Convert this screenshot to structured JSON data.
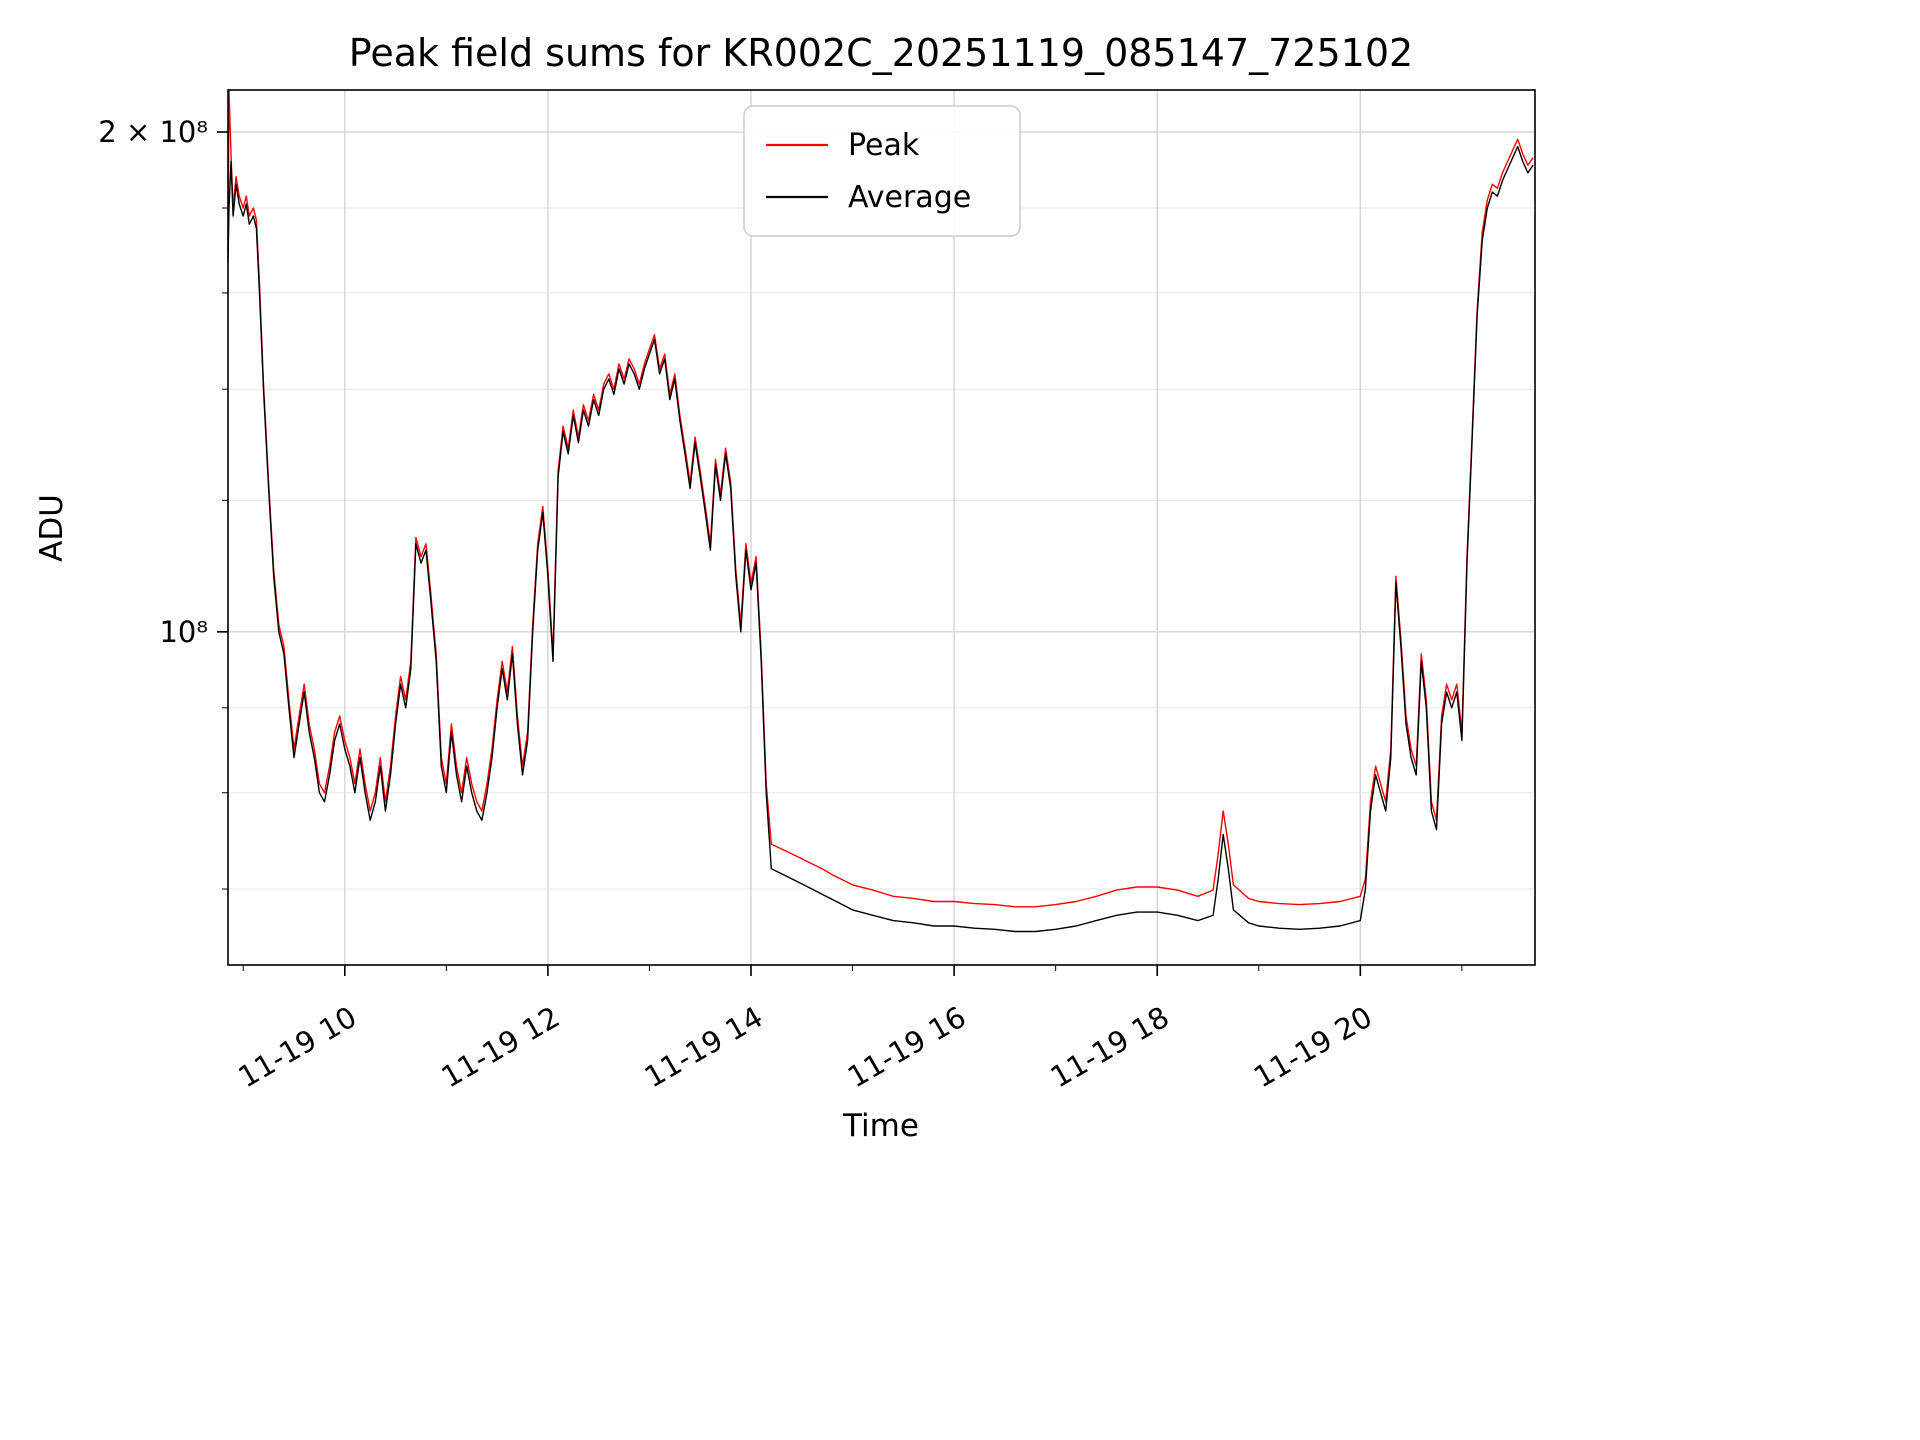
{
  "chart_data": {
    "type": "line",
    "title": "Peak field sums for KR002C_20251119_085147_725102",
    "xlabel": "Time",
    "ylabel": "ADU",
    "yscale": "log",
    "grid": true,
    "x_unit": "hour of day on 2025-11-19",
    "xlim": [
      8.85,
      21.72
    ],
    "ylim": [
      63000000,
      212000000
    ],
    "value_scale": 1000000,
    "xticks": [
      {
        "value": 10,
        "label": "11-19 10"
      },
      {
        "value": 12,
        "label": "11-19 12"
      },
      {
        "value": 14,
        "label": "11-19 14"
      },
      {
        "value": 16,
        "label": "11-19 16"
      },
      {
        "value": 18,
        "label": "11-19 18"
      },
      {
        "value": 20,
        "label": "11-19 20"
      }
    ],
    "minor_xticks": [
      9,
      11,
      13,
      15,
      17,
      19,
      21
    ],
    "yticks": [
      {
        "value": 100000000,
        "label": "10⁸"
      },
      {
        "value": 200000000,
        "label": "2 × 10⁸"
      }
    ],
    "minor_yticks": [
      70000000,
      80000000,
      90000000,
      120000000,
      140000000,
      160000000,
      180000000
    ],
    "legend": {
      "position": "upper center",
      "entries": [
        {
          "label": "Peak",
          "color": "#ff0000"
        },
        {
          "label": "Average",
          "color": "#000000"
        }
      ]
    },
    "x": [
      8.85,
      8.86,
      8.88,
      8.9,
      8.93,
      8.96,
      9.0,
      9.03,
      9.06,
      9.1,
      9.13,
      9.16,
      9.2,
      9.25,
      9.3,
      9.35,
      9.4,
      9.45,
      9.5,
      9.55,
      9.6,
      9.65,
      9.7,
      9.75,
      9.8,
      9.85,
      9.9,
      9.95,
      10.0,
      10.05,
      10.1,
      10.15,
      10.2,
      10.25,
      10.3,
      10.35,
      10.4,
      10.45,
      10.5,
      10.55,
      10.6,
      10.65,
      10.7,
      10.75,
      10.8,
      10.85,
      10.9,
      10.95,
      11.0,
      11.05,
      11.1,
      11.15,
      11.2,
      11.25,
      11.3,
      11.35,
      11.4,
      11.45,
      11.5,
      11.55,
      11.6,
      11.65,
      11.7,
      11.75,
      11.8,
      11.85,
      11.9,
      11.95,
      12.0,
      12.05,
      12.1,
      12.15,
      12.2,
      12.25,
      12.3,
      12.35,
      12.4,
      12.45,
      12.5,
      12.55,
      12.6,
      12.65,
      12.7,
      12.75,
      12.8,
      12.85,
      12.9,
      12.95,
      13.0,
      13.05,
      13.1,
      13.15,
      13.2,
      13.25,
      13.3,
      13.35,
      13.4,
      13.45,
      13.5,
      13.55,
      13.6,
      13.65,
      13.7,
      13.75,
      13.8,
      13.85,
      13.9,
      13.95,
      14.0,
      14.05,
      14.1,
      14.15,
      14.2,
      14.3,
      14.4,
      14.5,
      14.6,
      14.7,
      14.8,
      14.9,
      15.0,
      15.2,
      15.4,
      15.6,
      15.8,
      16.0,
      16.2,
      16.4,
      16.6,
      16.8,
      17.0,
      17.2,
      17.4,
      17.6,
      17.8,
      18.0,
      18.2,
      18.4,
      18.55,
      18.6,
      18.65,
      18.7,
      18.75,
      18.9,
      19.0,
      19.2,
      19.4,
      19.6,
      19.8,
      20.0,
      20.05,
      20.1,
      20.15,
      20.2,
      20.25,
      20.3,
      20.35,
      20.4,
      20.45,
      20.5,
      20.55,
      20.6,
      20.65,
      20.7,
      20.75,
      20.8,
      20.85,
      20.9,
      20.95,
      21.0,
      21.05,
      21.1,
      21.15,
      21.2,
      21.25,
      21.3,
      21.35,
      21.4,
      21.45,
      21.5,
      21.55,
      21.6,
      21.65,
      21.7
    ],
    "series": [
      {
        "name": "Peak",
        "color": "#ff0000",
        "values": [
          169,
          212,
          194,
          180,
          188,
          183,
          180,
          183,
          178,
          180,
          177,
          162,
          141,
          123,
          109,
          101,
          98,
          91,
          85,
          89,
          93,
          88,
          85,
          81,
          80,
          83,
          87,
          89,
          86,
          84,
          81,
          85,
          81,
          78,
          80,
          84,
          79,
          83,
          89,
          94,
          91,
          96,
          114,
          111,
          113,
          105,
          97,
          84,
          81,
          88,
          83,
          80,
          84,
          81,
          79,
          78,
          81,
          85,
          91,
          96,
          92,
          98,
          89,
          83,
          87,
          101,
          113,
          119,
          109,
          97,
          125,
          133,
          129,
          136,
          131,
          137,
          134,
          139,
          136,
          141,
          143,
          140,
          145,
          142,
          146,
          144,
          141,
          145,
          148,
          151,
          144,
          147,
          139,
          143,
          135,
          129,
          123,
          131,
          125,
          119,
          113,
          127,
          121,
          129,
          123,
          109,
          101,
          113,
          107,
          111,
          97,
          81,
          74.5,
          74,
          73.5,
          73,
          72.5,
          72,
          71.4,
          70.9,
          70.4,
          69.9,
          69.3,
          69.1,
          68.8,
          68.8,
          68.6,
          68.5,
          68.3,
          68.3,
          68.5,
          68.8,
          69.3,
          69.9,
          70.2,
          70.2,
          69.9,
          69.3,
          69.9,
          73.5,
          78,
          74.5,
          70.4,
          69.1,
          68.8,
          68.6,
          68.5,
          68.6,
          68.8,
          69.3,
          71,
          79,
          83,
          81,
          79,
          85,
          108,
          99,
          89,
          85,
          83,
          97,
          91,
          79,
          77,
          89,
          93,
          91,
          93,
          87,
          111,
          131,
          156,
          174,
          182,
          186,
          185,
          189,
          192,
          195,
          198,
          194,
          191,
          193
        ]
      },
      {
        "name": "Average",
        "color": "#000000",
        "values": [
          167,
          180,
          192,
          178,
          186,
          181,
          178,
          181,
          176,
          178,
          175,
          160,
          140,
          122,
          108,
          100,
          97,
          90,
          84,
          88,
          92,
          87,
          84,
          80,
          79,
          82,
          86,
          88,
          85,
          83,
          80,
          84,
          80,
          77,
          79,
          83,
          78,
          82,
          88,
          93,
          90,
          95,
          113,
          110,
          112,
          104,
          96,
          83,
          80,
          87,
          82,
          79,
          83,
          80,
          78,
          77,
          80,
          84,
          90,
          95,
          91,
          97,
          88,
          82,
          86,
          100,
          112,
          118,
          108,
          96,
          124,
          132,
          128,
          135,
          130,
          136,
          133,
          138,
          135,
          140,
          142,
          139,
          144,
          141,
          145,
          143,
          140,
          144,
          147,
          150,
          143,
          146,
          138,
          142,
          134,
          128,
          122,
          130,
          124,
          118,
          112,
          126,
          120,
          128,
          122,
          108,
          100,
          112,
          106,
          110,
          96,
          80,
          72,
          71.5,
          71,
          70.5,
          70,
          69.5,
          69,
          68.5,
          68,
          67.5,
          67,
          66.8,
          66.5,
          66.5,
          66.3,
          66.2,
          66,
          66,
          66.2,
          66.5,
          67,
          67.5,
          67.8,
          67.8,
          67.5,
          67,
          67.5,
          71,
          75.5,
          72,
          68,
          66.8,
          66.5,
          66.3,
          66.2,
          66.3,
          66.5,
          67,
          70,
          78,
          82,
          80,
          78,
          84,
          107,
          98,
          88,
          84,
          82,
          96,
          90,
          78,
          76,
          88,
          92,
          90,
          92,
          86,
          110,
          130,
          155,
          172,
          180,
          184,
          183,
          187,
          190,
          193,
          196,
          192,
          189,
          191
        ]
      }
    ]
  },
  "colors": {
    "background": "#ffffff",
    "grid_major": "#d4d4d4",
    "grid_minor": "#e7e7e7",
    "axis": "#000000",
    "peak_line": "#ff0000",
    "average_line": "#000000"
  }
}
